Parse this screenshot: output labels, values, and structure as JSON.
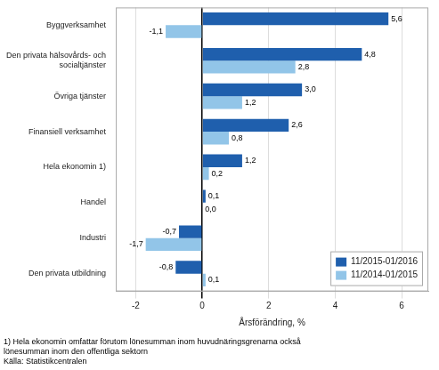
{
  "chart_data": {
    "type": "bar",
    "orientation": "horizontal",
    "categories": [
      "Den privata utbildning",
      "Industri",
      "Handel",
      "Hela ekonomin 1)",
      "Finansiell verksamhet",
      "Övriga tjänster",
      "Den privata hälsovårds- och\nsocialtjänster",
      "Byggverksamhet"
    ],
    "series": [
      {
        "name": "11/2015-01/2016",
        "color": "#1F5FAD",
        "values": [
          -0.8,
          -0.7,
          0.1,
          1.2,
          2.6,
          3.0,
          4.8,
          5.6
        ],
        "value_labels": [
          "-0,8",
          "-0,7",
          "0,1",
          "1,2",
          "2,6",
          "3,0",
          "4,8",
          "5,6"
        ]
      },
      {
        "name": "11/2014-01/2015",
        "color": "#92C5E8",
        "values": [
          0.1,
          -1.7,
          0.0,
          0.2,
          0.8,
          1.2,
          2.8,
          -1.1
        ],
        "value_labels": [
          "0,1",
          "-1,7",
          "0,0",
          "0,2",
          "0,8",
          "1,2",
          "2,8",
          "-1,1"
        ]
      }
    ],
    "xlabel": "Årsförändring, %",
    "xlim": [
      -2.6,
      6.8
    ],
    "xticks": [
      -2,
      0,
      2,
      4,
      6
    ],
    "grid": true,
    "legend": "lower right",
    "data_labels": true,
    "annotations": [
      "1) Hela ekonomin omfattar förutom lönesumman inom huvudnäringsgrenarna också",
      "lönesumman inom den offentliga sektorn",
      "Källa: Statistikcentralen"
    ]
  }
}
